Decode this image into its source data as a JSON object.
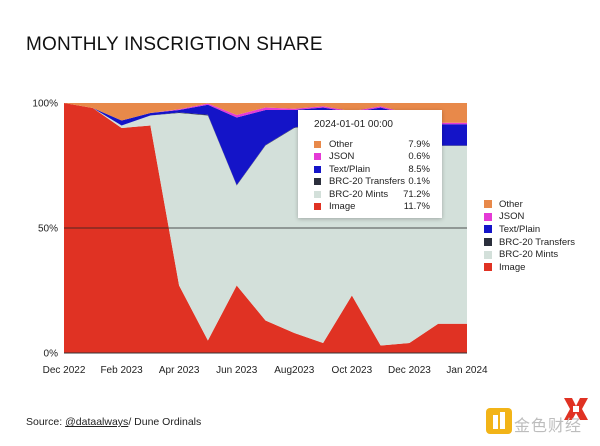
{
  "title": "MONTHLY INSCRIGTION SHARE",
  "source": {
    "prefix": "Source: ",
    "handle": "@dataalways",
    "suffix": "/ Dune Ordinals"
  },
  "watermark": {
    "text": "金色财经"
  },
  "tooltip": {
    "header": "2024-01-01 00:00",
    "rows": [
      {
        "name": "Other",
        "value": "7.9%",
        "color": "#e8894a"
      },
      {
        "name": "JSON",
        "value": "0.6%",
        "color": "#e43ad6"
      },
      {
        "name": "Text/Plain",
        "value": "8.5%",
        "color": "#1414c8"
      },
      {
        "name": "BRC-20 Transfers",
        "value": "0.1%",
        "color": "#2b2f3c"
      },
      {
        "name": "BRC-20 Mints",
        "value": "71.2%",
        "color": "#d3e0da"
      },
      {
        "name": "Image",
        "value": "11.7%",
        "color": "#e03223"
      }
    ]
  },
  "chart_data": {
    "type": "area",
    "stacked": true,
    "percent": true,
    "title": "MONTHLY INSCRIGTION SHARE",
    "xlabel": "",
    "ylabel": "",
    "ylim": [
      0,
      100
    ],
    "yticks": [
      "0%",
      "50%",
      "100%"
    ],
    "xticks": [
      "Dec 2022",
      "Feb 2023",
      "Apr 2023",
      "Jun 2023",
      "Aug2023",
      "Oct 2023",
      "Dec 2023",
      "Jan 2024"
    ],
    "x": [
      "2022-12",
      "2023-01",
      "2023-02",
      "2023-03",
      "2023-04",
      "2023-05",
      "2023-06",
      "2023-07",
      "2023-08",
      "2023-09",
      "2023-10",
      "2023-11",
      "2023-12",
      "2024-01",
      "2024-01-end"
    ],
    "legend_position": "right",
    "series": [
      {
        "name": "Image",
        "color": "#e03223",
        "values": [
          100,
          98,
          90,
          91,
          27,
          5,
          27,
          13,
          8,
          4,
          23,
          3,
          4,
          11.7,
          11.7
        ]
      },
      {
        "name": "BRC-20 Mints",
        "color": "#d3e0da",
        "values": [
          0,
          0,
          1,
          4,
          69,
          90,
          40,
          70,
          82,
          88,
          68,
          83,
          85,
          71.2,
          71.2
        ]
      },
      {
        "name": "BRC-20 Transfers",
        "color": "#2b2f3c",
        "values": [
          0,
          0,
          0,
          0,
          0.2,
          0.3,
          0.2,
          0.2,
          0.2,
          0.2,
          0.2,
          0.2,
          0.2,
          0.1,
          0.1
        ]
      },
      {
        "name": "Text/Plain",
        "color": "#1414c8",
        "values": [
          0,
          0,
          2,
          1,
          1,
          4,
          27,
          14,
          7,
          6,
          5,
          12,
          6,
          8.5,
          8.5
        ]
      },
      {
        "name": "JSON",
        "color": "#e43ad6",
        "values": [
          0,
          0,
          0,
          0,
          0.3,
          0.5,
          1,
          1,
          0.5,
          0.5,
          0.5,
          0.5,
          0.5,
          0.6,
          0.6
        ]
      },
      {
        "name": "Other",
        "color": "#e8894a",
        "values": [
          0,
          2,
          7,
          4,
          2.5,
          0.2,
          4.8,
          1.8,
          2.3,
          1.3,
          3.3,
          1.3,
          4.3,
          7.9,
          7.9
        ]
      }
    ]
  }
}
